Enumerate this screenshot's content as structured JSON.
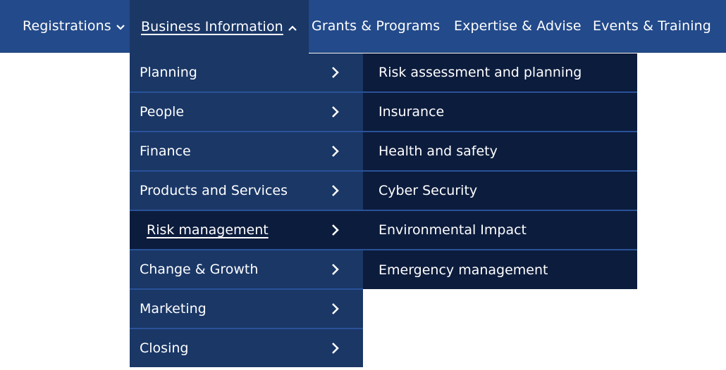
{
  "nav": {
    "items": [
      {
        "label": "Registrations",
        "icon": "chevron-down-icon"
      },
      {
        "label": "Business Information",
        "icon": "chevron-up-icon"
      },
      {
        "label": "Grants & Programs"
      },
      {
        "label": "Expertise & Advise"
      },
      {
        "label": "Events & Training"
      }
    ]
  },
  "submenu": {
    "items": [
      {
        "label": "Planning",
        "icon": "chevron-right-icon"
      },
      {
        "label": "People",
        "icon": "chevron-right-icon"
      },
      {
        "label": "Finance",
        "icon": "chevron-right-icon"
      },
      {
        "label": "Products and Services",
        "icon": "chevron-right-icon"
      },
      {
        "label": "Risk management",
        "icon": "chevron-right-icon"
      },
      {
        "label": "Change & Growth",
        "icon": "chevron-right-icon"
      },
      {
        "label": "Marketing",
        "icon": "chevron-right-icon"
      },
      {
        "label": "Closing",
        "icon": "chevron-right-icon"
      }
    ]
  },
  "risk_submenu": {
    "items": [
      {
        "label": "Risk assessment and planning"
      },
      {
        "label": "Insurance"
      },
      {
        "label": "Health and safety"
      },
      {
        "label": "Cyber Security"
      },
      {
        "label": "Environmental Impact"
      },
      {
        "label": "Emergency management"
      }
    ]
  },
  "colors": {
    "nav_bg": "#234a8a",
    "submenu_bg": "#1a3766",
    "selected_bg": "#0c1c3d",
    "text": "#ffffff"
  }
}
